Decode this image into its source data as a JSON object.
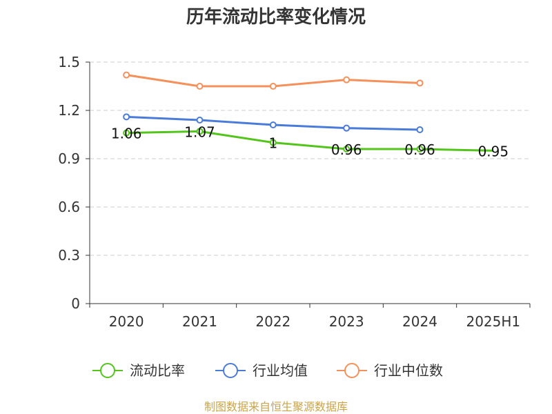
{
  "source_note": "制图数据来自恒生聚源数据库",
  "colors": {
    "source": "#c9a44a",
    "grid": "#cccccc",
    "axis": "#333333"
  },
  "chart_data": {
    "type": "line",
    "title": "历年流动比率变化情况",
    "categories": [
      "2020",
      "2021",
      "2022",
      "2023",
      "2024",
      "2025H1"
    ],
    "ylim": [
      0,
      1.5
    ],
    "yticks": [
      "0",
      "0.3",
      "0.6",
      "0.9",
      "1.2",
      "1.5"
    ],
    "grid": true,
    "legend_position": "bottom",
    "series": [
      {
        "name": "流动比率",
        "color": "#52c41a",
        "values": [
          1.06,
          1.07,
          1.0,
          0.96,
          0.96,
          0.95
        ],
        "labels": [
          "1.06",
          "1.07",
          "1",
          "0.96",
          "0.96",
          "0.95"
        ],
        "show_labels": true
      },
      {
        "name": "行业均值",
        "color": "#4a7bd9",
        "values": [
          1.16,
          1.14,
          1.11,
          1.09,
          1.08,
          null
        ],
        "show_labels": false
      },
      {
        "name": "行业中位数",
        "color": "#f5905a",
        "values": [
          1.42,
          1.35,
          1.35,
          1.39,
          1.37,
          null
        ],
        "show_labels": false
      }
    ]
  }
}
